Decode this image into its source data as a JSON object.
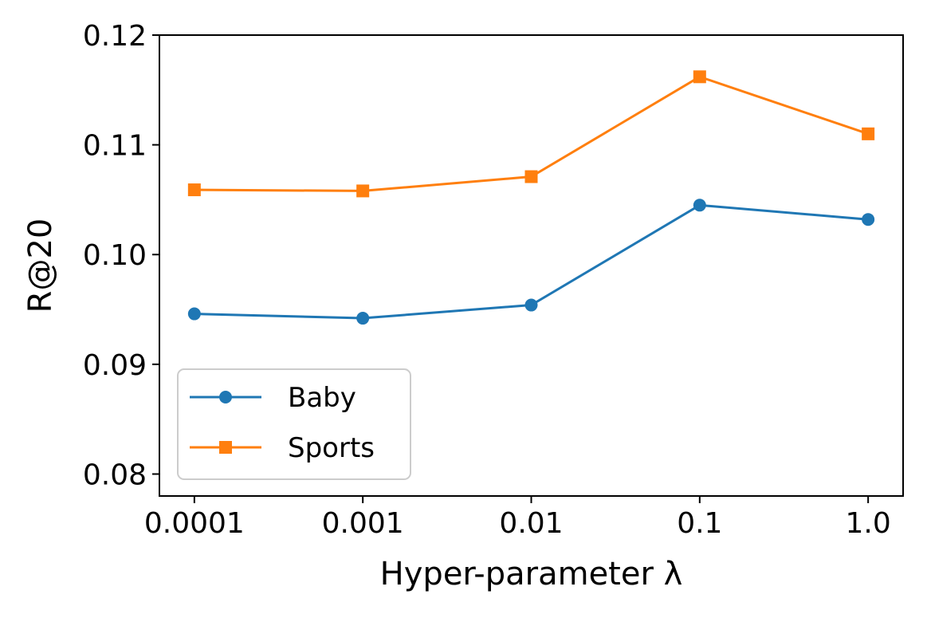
{
  "chart_data": {
    "type": "line",
    "title": "",
    "xlabel": "Hyper-parameter λ",
    "ylabel": "R@20",
    "categories": [
      "0.0001",
      "0.001",
      "0.01",
      "0.1",
      "1.0"
    ],
    "ylim": [
      0.078,
      0.12
    ],
    "yticks": [
      "0.08",
      "0.09",
      "0.10",
      "0.11",
      "0.12"
    ],
    "ytick_values": [
      0.08,
      0.09,
      0.1,
      0.11,
      0.12
    ],
    "grid": false,
    "legend_position": "lower-left",
    "series": [
      {
        "name": "Baby",
        "values": [
          0.0946,
          0.0942,
          0.0954,
          0.1045,
          0.1032
        ],
        "color": "#1f77b4",
        "marker": "circle"
      },
      {
        "name": "Sports",
        "values": [
          0.1059,
          0.1058,
          0.1071,
          0.1162,
          0.111
        ],
        "color": "#ff7f0e",
        "marker": "square"
      }
    ]
  }
}
